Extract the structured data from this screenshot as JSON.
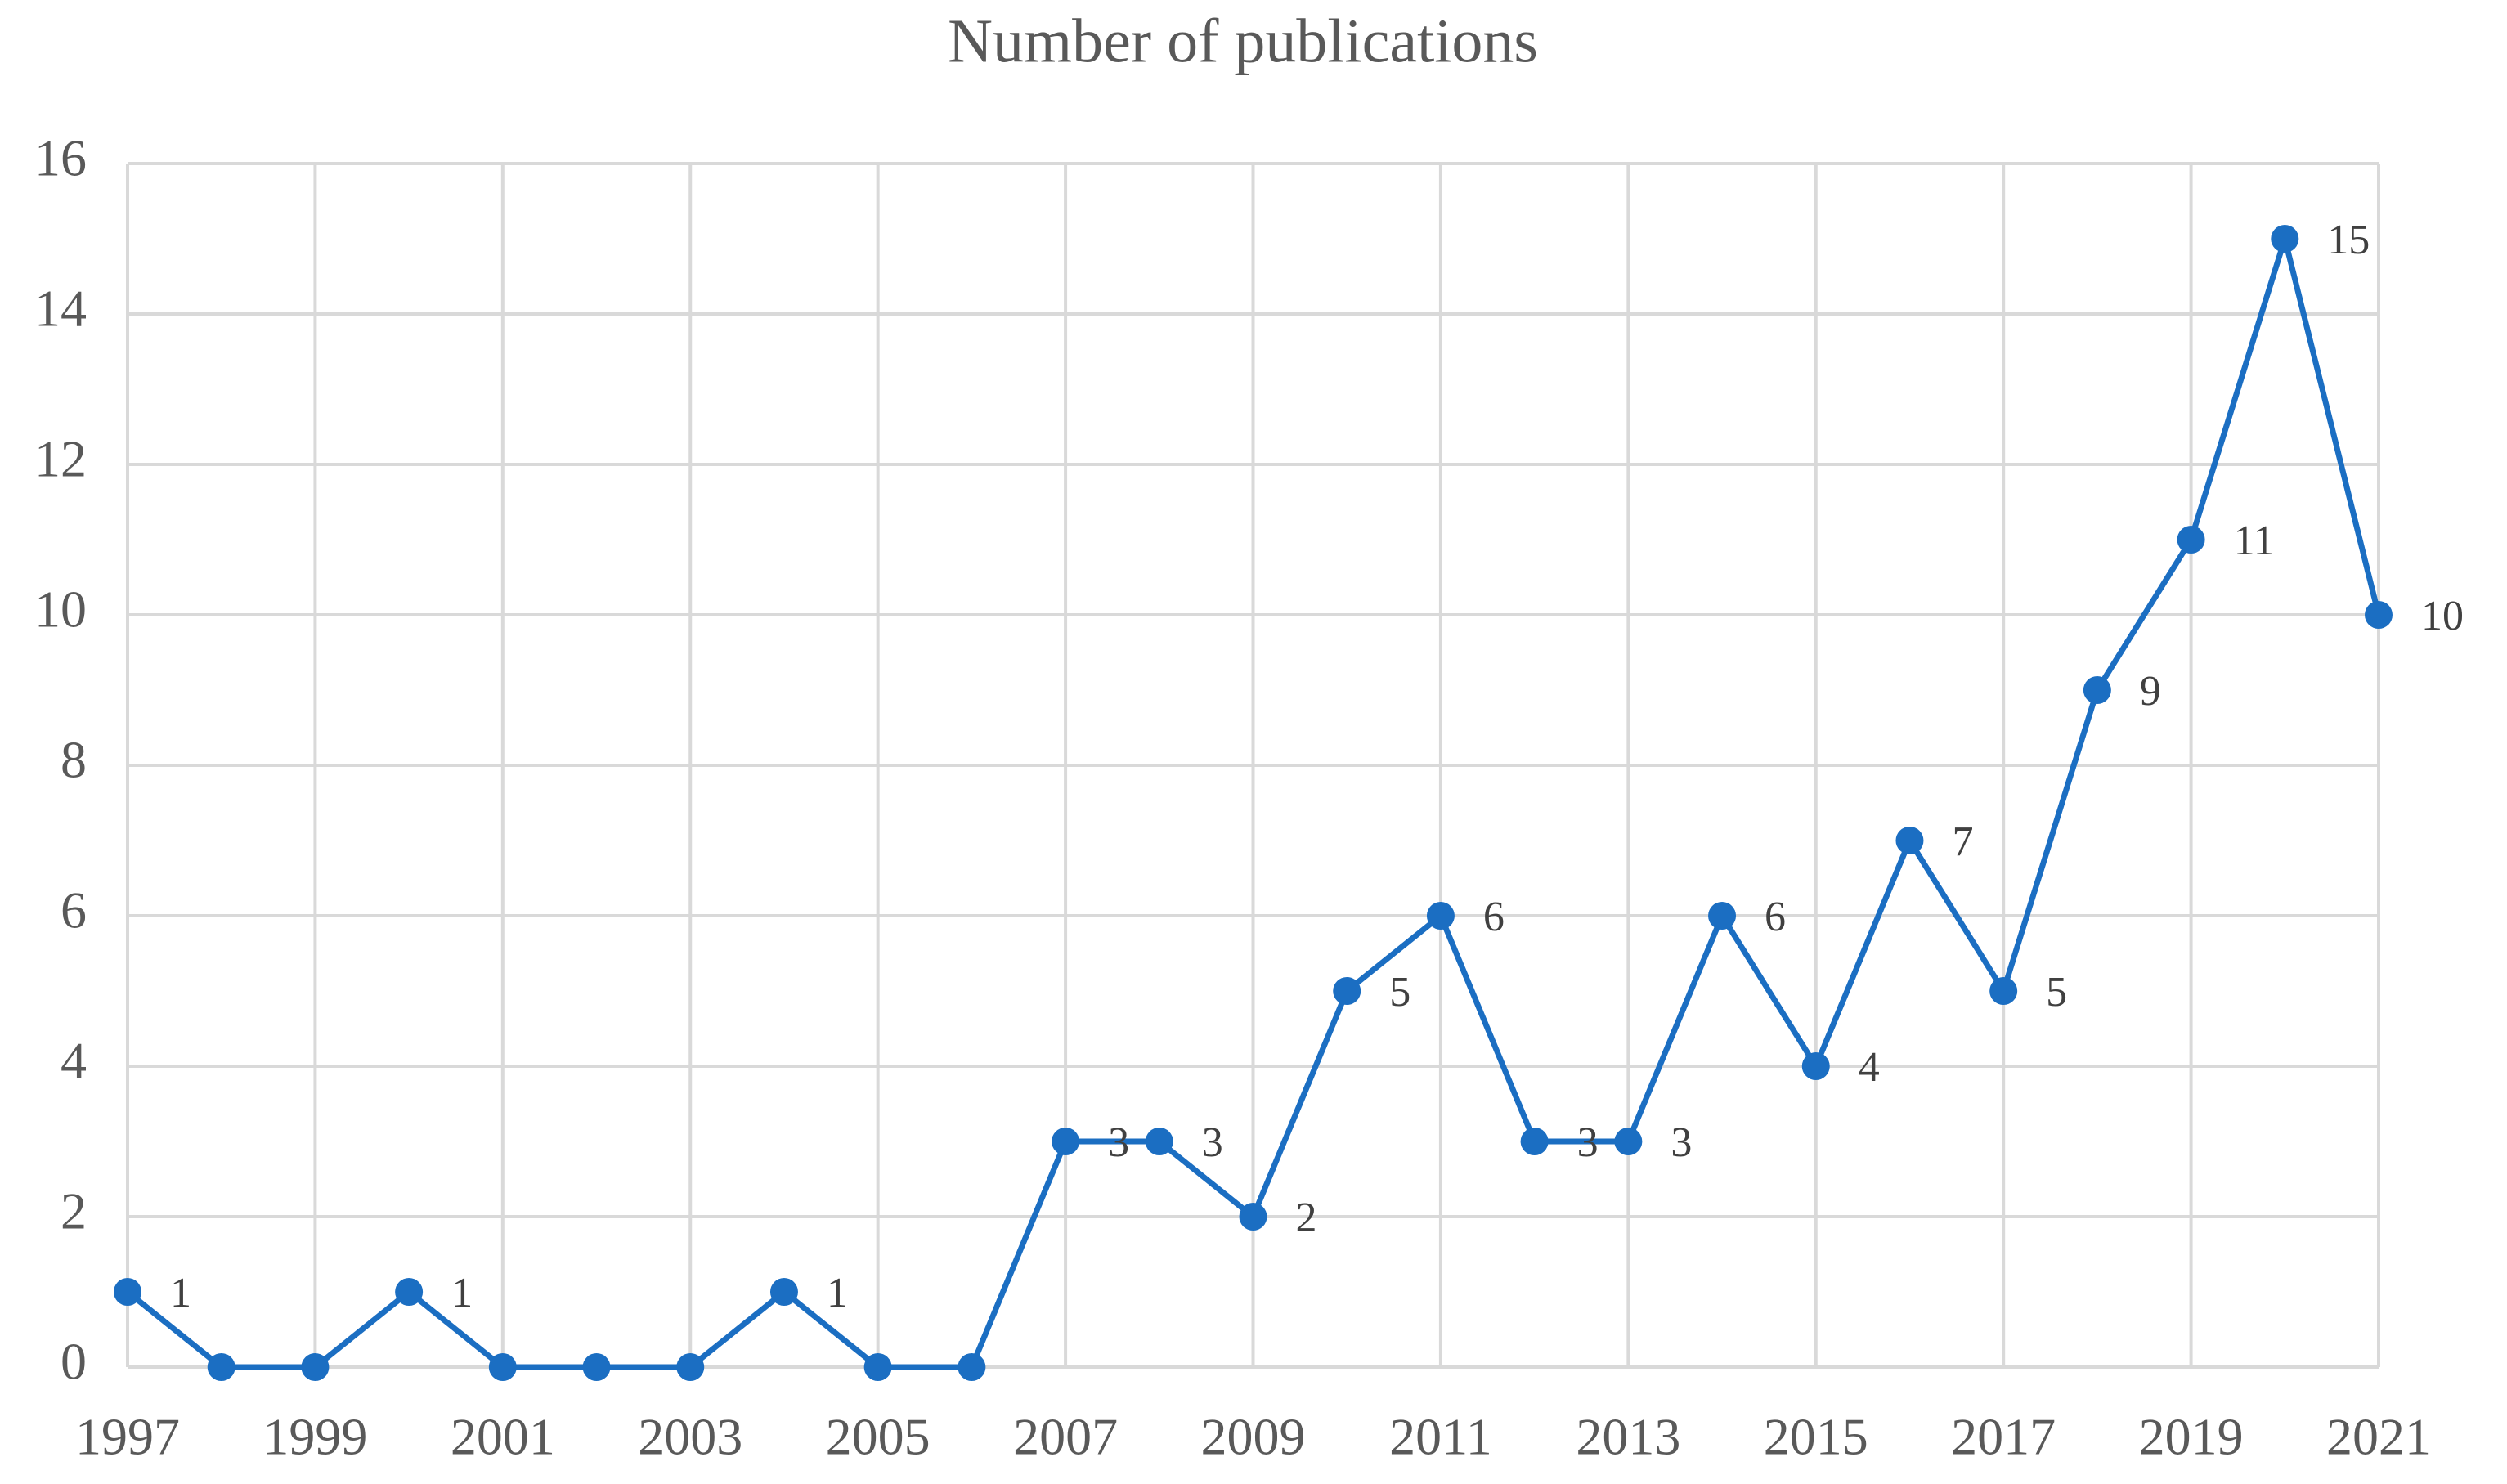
{
  "chart_data": {
    "type": "line",
    "title": "Number of publications",
    "x": [
      1997,
      1998,
      1999,
      2000,
      2001,
      2002,
      2003,
      2004,
      2005,
      2006,
      2007,
      2008,
      2009,
      2010,
      2011,
      2012,
      2013,
      2014,
      2015,
      2016,
      2017,
      2018,
      2019,
      2020,
      2021
    ],
    "values": [
      1,
      0,
      0,
      1,
      0,
      0,
      0,
      1,
      0,
      0,
      3,
      3,
      2,
      5,
      6,
      3,
      3,
      6,
      4,
      7,
      5,
      9,
      11,
      15,
      10
    ],
    "color": "#1b6ec2",
    "xlim": [
      1997,
      2021
    ],
    "xticks": [
      1997,
      1999,
      2001,
      2003,
      2005,
      2007,
      2009,
      2011,
      2013,
      2015,
      2017,
      2019,
      2021
    ],
    "ylim": [
      0,
      16
    ],
    "yticks": [
      0,
      2,
      4,
      6,
      8,
      10,
      12,
      14,
      16
    ],
    "grid": true
  }
}
